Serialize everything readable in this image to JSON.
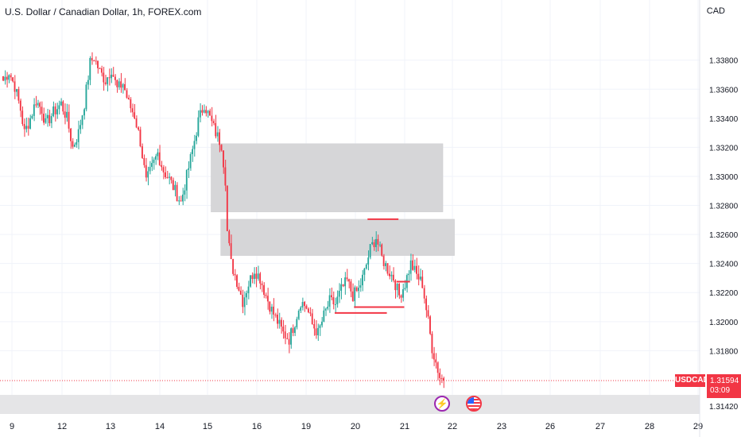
{
  "header": {
    "title": "U.S. Dollar / Canadian Dollar, 1h, FOREX.com",
    "currency": "CAD"
  },
  "price_badge": {
    "symbol": "USDCAD",
    "price": "1.31594",
    "countdown": "03:09"
  },
  "colors": {
    "up": "#26a69a",
    "down": "#f23645",
    "zone": "#d6d6d8",
    "grid": "#f0f3fa",
    "text": "#131722"
  },
  "events": [
    {
      "icon": "lightning-icon"
    },
    {
      "icon": "us-flag-icon"
    }
  ],
  "chart_data": {
    "type": "candlestick",
    "title": "U.S. Dollar / Canadian Dollar, 1h, FOREX.com",
    "y_tick_labels": [
      "1.33800",
      "1.33600",
      "1.33400",
      "1.33200",
      "1.33000",
      "1.32800",
      "1.32600",
      "1.32400",
      "1.32200",
      "1.32000",
      "1.31800",
      "1.31420"
    ],
    "y_tick_values": [
      1.338,
      1.336,
      1.334,
      1.332,
      1.33,
      1.328,
      1.326,
      1.324,
      1.322,
      1.32,
      1.318,
      1.3142
    ],
    "x_tick_labels": [
      "9",
      "12",
      "13",
      "14",
      "15",
      "16",
      "19",
      "20",
      "21",
      "22",
      "23",
      "26",
      "27",
      "28",
      "29"
    ],
    "ylim": [
      1.3137,
      1.3405
    ],
    "last_price": 1.31594,
    "close_path": [
      [
        0,
        1.3366
      ],
      [
        3,
        1.3372
      ],
      [
        6,
        1.3362
      ],
      [
        9,
        1.3346
      ],
      [
        11,
        1.333
      ],
      [
        14,
        1.334
      ],
      [
        17,
        1.3352
      ],
      [
        20,
        1.3346
      ],
      [
        22,
        1.3336
      ],
      [
        26,
        1.3344
      ],
      [
        30,
        1.335
      ],
      [
        33,
        1.334
      ],
      [
        36,
        1.332
      ],
      [
        39,
        1.333
      ],
      [
        42,
        1.335
      ],
      [
        45,
        1.3378
      ],
      [
        47,
        1.3382
      ],
      [
        50,
        1.3372
      ],
      [
        53,
        1.3366
      ],
      [
        56,
        1.3374
      ],
      [
        59,
        1.336
      ],
      [
        62,
        1.3364
      ],
      [
        65,
        1.335
      ],
      [
        68,
        1.3342
      ],
      [
        71,
        1.3324
      ],
      [
        74,
        1.3296
      ],
      [
        77,
        1.3306
      ],
      [
        80,
        1.3316
      ],
      [
        83,
        1.3304
      ],
      [
        86,
        1.3298
      ],
      [
        89,
        1.329
      ],
      [
        92,
        1.3282
      ],
      [
        95,
        1.33
      ],
      [
        98,
        1.3318
      ],
      [
        101,
        1.3338
      ],
      [
        104,
        1.335
      ],
      [
        107,
        1.334
      ],
      [
        110,
        1.333
      ],
      [
        113,
        1.3322
      ],
      [
        115,
        1.3298
      ],
      [
        116,
        1.3262
      ],
      [
        118,
        1.324
      ],
      [
        121,
        1.3228
      ],
      [
        124,
        1.3214
      ],
      [
        127,
        1.3226
      ],
      [
        130,
        1.3236
      ],
      [
        133,
        1.323
      ],
      [
        136,
        1.3218
      ],
      [
        139,
        1.3208
      ],
      [
        142,
        1.32
      ],
      [
        145,
        1.3192
      ],
      [
        148,
        1.3188
      ],
      [
        151,
        1.32
      ],
      [
        154,
        1.3214
      ],
      [
        157,
        1.321
      ],
      [
        160,
        1.3198
      ],
      [
        163,
        1.3192
      ],
      [
        166,
        1.3204
      ],
      [
        169,
        1.3214
      ],
      [
        172,
        1.3212
      ],
      [
        175,
        1.3222
      ],
      [
        178,
        1.3228
      ],
      [
        181,
        1.3218
      ],
      [
        184,
        1.3222
      ],
      [
        187,
        1.3234
      ],
      [
        190,
        1.325
      ],
      [
        193,
        1.3258
      ],
      [
        196,
        1.3244
      ],
      [
        199,
        1.3236
      ],
      [
        202,
        1.323
      ],
      [
        205,
        1.3218
      ],
      [
        208,
        1.3226
      ],
      [
        211,
        1.324
      ],
      [
        214,
        1.3232
      ],
      [
        217,
        1.3226
      ],
      [
        220,
        1.32
      ],
      [
        222,
        1.3182
      ],
      [
        224,
        1.3172
      ],
      [
        226,
        1.3162
      ],
      [
        228,
        1.316
      ]
    ],
    "candle_count": 229,
    "zones": [
      {
        "from_bar": 108,
        "to_bar": 228,
        "top": 1.33225,
        "bottom": 1.32755
      },
      {
        "from_bar": 113,
        "to_bar": 234,
        "top": 1.32705,
        "bottom": 1.32455
      }
    ],
    "levels": [
      {
        "from_bar": 189,
        "to_bar": 205,
        "value": 1.32705
      },
      {
        "from_bar": 204,
        "to_bar": 211,
        "value": 1.32275
      },
      {
        "from_bar": 182,
        "to_bar": 208,
        "value": 1.321
      },
      {
        "from_bar": 172,
        "to_bar": 199,
        "value": 1.3206
      }
    ]
  }
}
